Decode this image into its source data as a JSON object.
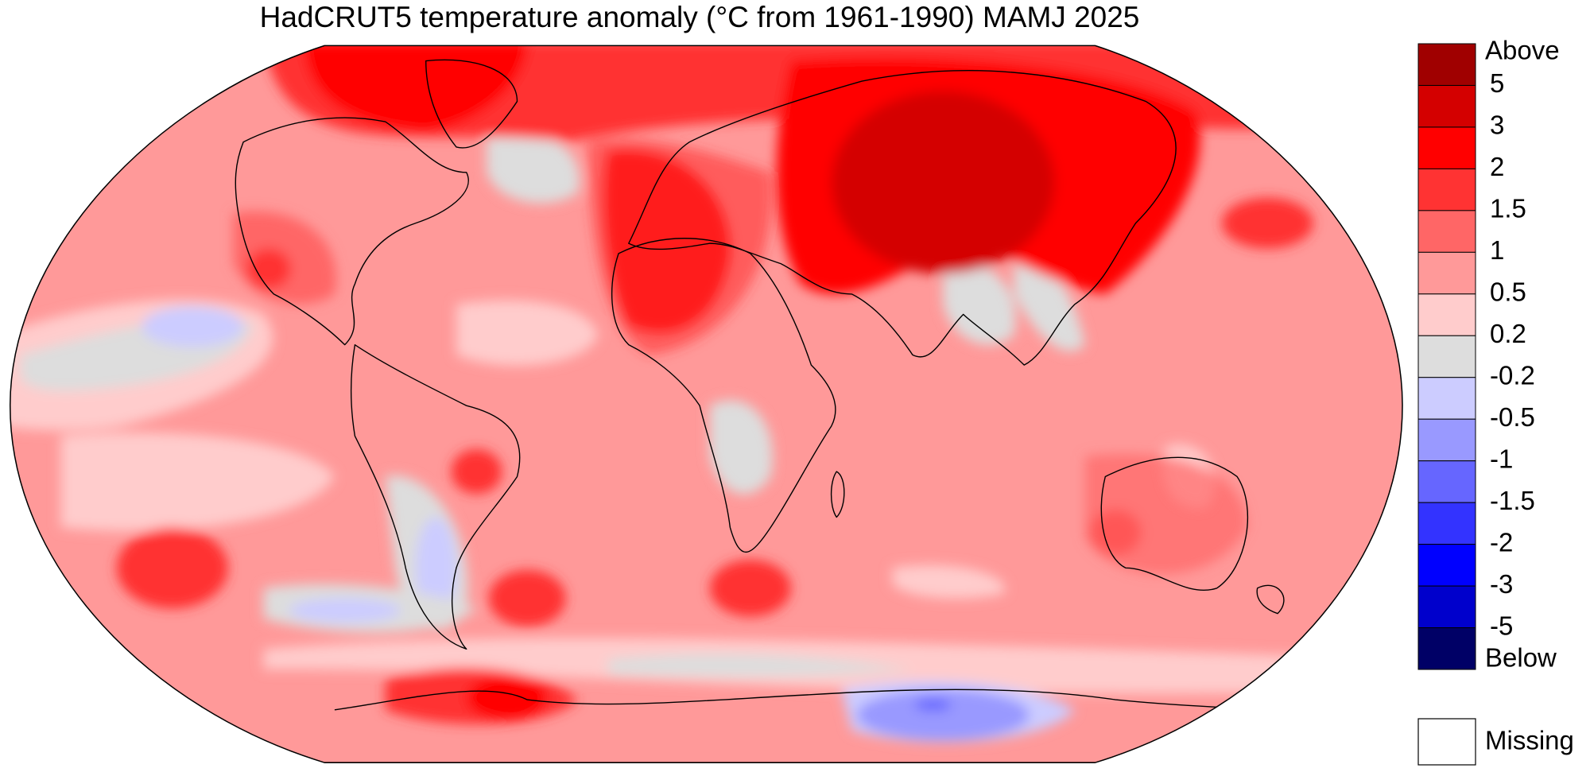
{
  "title": "HadCRUT5 temperature anomaly (°C from 1961-1990) MAMJ 2025",
  "legend": {
    "levels": [
      "Above",
      5,
      3,
      2,
      1.5,
      1,
      0.5,
      0.2,
      -0.2,
      -0.5,
      -1,
      -1.5,
      -2,
      -3,
      -5,
      "Below"
    ],
    "colors": [
      "#a00000",
      "#d40000",
      "#ff0000",
      "#ff3333",
      "#ff6666",
      "#ff9999",
      "#ffcccc",
      "#dddddd",
      "#ccccff",
      "#9999ff",
      "#6666ff",
      "#3333ff",
      "#0000ff",
      "#0000cc",
      "#000066"
    ],
    "missing": "Missing",
    "missing_color": "#ffffff"
  }
}
